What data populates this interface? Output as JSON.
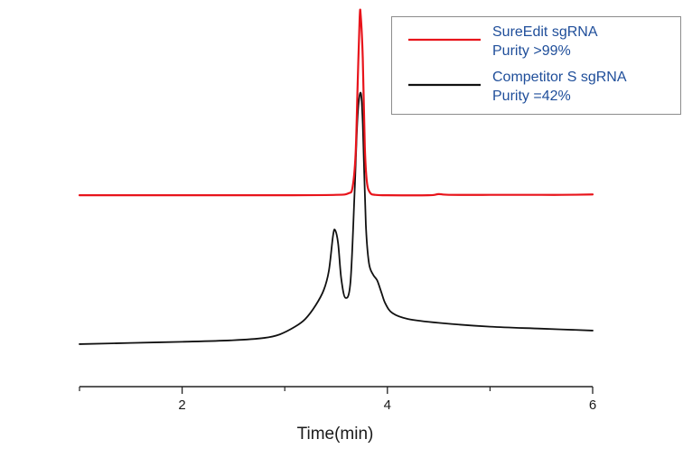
{
  "colors": {
    "series_sureedit": "#e8141b",
    "series_competitor": "#111111",
    "legend_text": "#1f4e9a",
    "legend_border": "#8c8c8c",
    "axis": "#222222"
  },
  "chart_data": {
    "type": "line",
    "title": "",
    "xlabel": "Time(min)",
    "ylabel": "",
    "xlim": [
      1,
      6
    ],
    "ylim": [
      0,
      100
    ],
    "x_ticks": [
      2,
      4,
      6
    ],
    "x_minor_ticks": [
      1,
      3,
      5
    ],
    "y_axis_visible": false,
    "grid": false,
    "legend_position": "top-right",
    "legend": [
      {
        "series": "SureEdit sgRNA",
        "lines": [
          "SureEdit sgRNA",
          "Purity >99%"
        ]
      },
      {
        "series": "Competitor S sgRNA",
        "lines": [
          "Competitor S sgRNA",
          "Purity =42%"
        ]
      }
    ],
    "series": [
      {
        "name": "SureEdit sgRNA",
        "color": "#e8141b",
        "x": [
          1.0,
          2.0,
          3.0,
          3.5,
          3.62,
          3.66,
          3.69,
          3.71,
          3.73,
          3.74,
          3.76,
          3.78,
          3.8,
          3.83,
          3.88,
          4.0,
          4.4,
          4.5,
          4.6,
          5.0,
          5.5,
          5.7,
          6.0
        ],
        "y": [
          49.5,
          49.5,
          49.5,
          49.6,
          50.0,
          51.5,
          60.0,
          78.0,
          95.5,
          96.0,
          85.0,
          62.0,
          53.0,
          50.2,
          49.6,
          49.5,
          49.5,
          49.8,
          49.6,
          49.6,
          49.6,
          49.6,
          49.7
        ]
      },
      {
        "name": "Competitor S sgRNA",
        "color": "#111111",
        "x": [
          1.0,
          1.5,
          2.0,
          2.5,
          2.8,
          2.95,
          3.1,
          3.2,
          3.3,
          3.38,
          3.43,
          3.47,
          3.49,
          3.52,
          3.55,
          3.59,
          3.64,
          3.68,
          3.71,
          3.74,
          3.76,
          3.79,
          3.82,
          3.86,
          3.9,
          3.94,
          3.98,
          4.05,
          4.2,
          4.5,
          5.0,
          5.5,
          6.0
        ],
        "y": [
          11.0,
          11.3,
          11.6,
          12.0,
          12.6,
          13.5,
          15.5,
          17.5,
          21.0,
          25.0,
          30.0,
          39.0,
          40.5,
          37.0,
          28.0,
          23.0,
          27.0,
          50.0,
          70.0,
          76.0,
          68.0,
          42.0,
          32.0,
          29.0,
          27.5,
          24.5,
          21.5,
          19.0,
          17.5,
          16.5,
          15.5,
          15.0,
          14.5
        ]
      }
    ]
  }
}
